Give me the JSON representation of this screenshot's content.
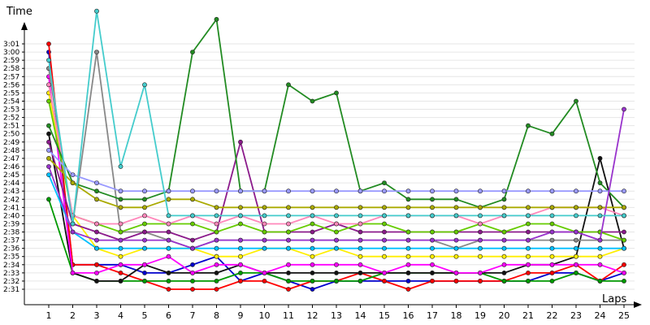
{
  "chart_data": {
    "type": "line",
    "xlabel": "Laps",
    "ylabel": "Time",
    "x": [
      1,
      2,
      3,
      4,
      5,
      6,
      7,
      8,
      9,
      10,
      11,
      12,
      13,
      14,
      15,
      16,
      17,
      18,
      19,
      20,
      21,
      22,
      23,
      24,
      25
    ],
    "xlim": [
      1,
      25
    ],
    "ylim_seconds": [
      151,
      181
    ],
    "y_tick_labels": [
      "2:31",
      "2:32",
      "2:33",
      "2:34",
      "2:35",
      "2:36",
      "2:37",
      "2:38",
      "2:39",
      "2:40",
      "2:41",
      "2:42",
      "2:43",
      "2:44",
      "2:45",
      "2:46",
      "2:47",
      "2:48",
      "2:49",
      "2:50",
      "2:51",
      "2:52",
      "2:53",
      "2:54",
      "2:55",
      "2:56",
      "2:57",
      "2:58",
      "2:59",
      "3:00",
      "3:01"
    ],
    "grid": true,
    "legend": "none",
    "series": [
      {
        "color": "#0000cc",
        "values": [
          "3:00",
          "2:34",
          "2:34",
          "2:34",
          "2:33",
          "2:33",
          "2:34",
          "2:35",
          "2:32",
          "2:33",
          "2:32",
          "2:31",
          "2:32",
          "2:32",
          "2:32",
          "2:32",
          "2:32",
          "2:32",
          "2:32",
          "2:32",
          "2:32",
          "2:33",
          "2:33",
          "2:32",
          "2:33"
        ]
      },
      {
        "color": "#ff0000",
        "values": [
          "3:01",
          "2:34",
          "2:34",
          "2:33",
          "2:32",
          "2:31",
          "2:31",
          "2:31",
          "2:32",
          "2:32",
          "2:31",
          "2:32",
          "2:32",
          "2:33",
          "2:32",
          "2:31",
          "2:32",
          "2:32",
          "2:32",
          "2:32",
          "2:33",
          "2:33",
          "2:34",
          "2:32",
          "2:34"
        ]
      },
      {
        "color": "#009900",
        "values": [
          "2:42",
          "2:33",
          "2:32",
          "2:32",
          "2:32",
          "2:32",
          "2:32",
          "2:32",
          "2:33",
          "2:33",
          "2:32",
          "2:32",
          "2:32",
          "2:32",
          "2:33",
          "2:33",
          "2:33",
          "2:33",
          "2:33",
          "2:32",
          "2:32",
          "2:32",
          "2:33",
          "2:32",
          "2:32"
        ]
      },
      {
        "color": "#111111",
        "values": [
          "2:50",
          "2:33",
          "2:32",
          "2:32",
          "2:34",
          "2:33",
          "2:33",
          "2:33",
          "2:34",
          "2:33",
          "2:33",
          "2:33",
          "2:33",
          "2:33",
          "2:33",
          "2:33",
          "2:33",
          "2:33",
          "2:33",
          "2:33",
          "2:34",
          "2:34",
          "2:35",
          "2:47",
          "2:36"
        ]
      },
      {
        "color": "#ff00ff",
        "values": [
          "2:57",
          "2:33",
          "2:33",
          "2:34",
          "2:34",
          "2:35",
          "2:33",
          "2:34",
          "2:34",
          "2:33",
          "2:34",
          "2:34",
          "2:34",
          "2:34",
          "2:33",
          "2:34",
          "2:34",
          "2:33",
          "2:33",
          "2:34",
          "2:34",
          "2:34",
          "2:34",
          "2:34",
          "2:33"
        ]
      },
      {
        "color": "#888888",
        "values": [
          "2:58",
          "2:39",
          "3:00",
          "2:38",
          "2:38",
          "2:37",
          "2:36",
          "2:37",
          "2:37",
          "2:37",
          "2:37",
          "2:37",
          "2:37",
          "2:37",
          "2:37",
          "2:37",
          "2:37",
          "2:36",
          "2:37",
          "2:37",
          "2:37",
          "2:37",
          "2:37",
          "2:37",
          "2:37"
        ]
      },
      {
        "color": "#ffee00",
        "values": [
          "2:55",
          "2:40",
          "2:36",
          "2:35",
          "2:36",
          "2:36",
          "2:36",
          "2:35",
          "2:35",
          "2:36",
          "2:36",
          "2:35",
          "2:36",
          "2:35",
          "2:35",
          "2:35",
          "2:35",
          "2:35",
          "2:35",
          "2:35",
          "2:35",
          "2:35",
          "2:35",
          "2:35",
          "2:36"
        ]
      },
      {
        "color": "#00bfff",
        "values": [
          "2:45",
          "2:38",
          "2:36",
          "2:36",
          "2:36",
          "2:36",
          "2:36",
          "2:36",
          "2:36",
          "2:36",
          "2:36",
          "2:36",
          "2:36",
          "2:36",
          "2:36",
          "2:36",
          "2:36",
          "2:36",
          "2:36",
          "2:36",
          "2:36",
          "2:36",
          "2:36",
          "2:36",
          "2:36"
        ]
      },
      {
        "color": "#8b1a8b",
        "values": [
          "2:49",
          "2:39",
          "2:38",
          "2:37",
          "2:38",
          "2:38",
          "2:37",
          "2:38",
          "2:49",
          "2:38",
          "2:38",
          "2:38",
          "2:39",
          "2:38",
          "2:38",
          "2:38",
          "2:38",
          "2:38",
          "2:38",
          "2:38",
          "2:38",
          "2:38",
          "2:38",
          "2:38",
          "2:38"
        ]
      },
      {
        "color": "#66cc00",
        "values": [
          "2:54",
          "2:40",
          "2:39",
          "2:38",
          "2:39",
          "2:39",
          "2:39",
          "2:38",
          "2:39",
          "2:38",
          "2:38",
          "2:39",
          "2:38",
          "2:39",
          "2:39",
          "2:38",
          "2:38",
          "2:38",
          "2:39",
          "2:38",
          "2:39",
          "2:39",
          "2:38",
          "2:38",
          "2:37"
        ]
      },
      {
        "color": "#ff88bb",
        "values": [
          "2:56",
          "2:40",
          "2:39",
          "2:39",
          "2:40",
          "2:39",
          "2:40",
          "2:39",
          "2:40",
          "2:39",
          "2:39",
          "2:40",
          "2:39",
          "2:39",
          "2:40",
          "2:40",
          "2:40",
          "2:40",
          "2:39",
          "2:40",
          "2:40",
          "2:41",
          "2:41",
          "2:41",
          "2:40"
        ]
      },
      {
        "color": "#228b22",
        "values": [
          "2:51",
          "2:44",
          "2:43",
          "2:42",
          "2:42",
          "2:43",
          "3:00",
          "3:04",
          "2:43",
          "2:43",
          "2:56",
          "2:54",
          "2:55",
          "2:43",
          "2:44",
          "2:42",
          "2:42",
          "2:42",
          "2:41",
          "2:42",
          "2:51",
          "2:50",
          "2:54",
          "2:44",
          "2:41"
        ]
      },
      {
        "color": "#aaaa00",
        "values": [
          "2:47",
          "2:44",
          "2:42",
          "2:41",
          "2:41",
          "2:42",
          "2:42",
          "2:41",
          "2:41",
          "2:41",
          "2:41",
          "2:41",
          "2:41",
          "2:41",
          "2:41",
          "2:41",
          "2:41",
          "2:41",
          "2:41",
          "2:41",
          "2:41",
          "2:41",
          "2:41",
          "2:41",
          "2:41"
        ]
      },
      {
        "color": "#9999ff",
        "values": [
          "2:48",
          "2:45",
          "2:44",
          "2:43",
          "2:43",
          "2:43",
          "2:43",
          "2:43",
          "2:43",
          "2:43",
          "2:43",
          "2:43",
          "2:43",
          "2:43",
          "2:43",
          "2:43",
          "2:43",
          "2:43",
          "2:43",
          "2:43",
          "2:43",
          "2:43",
          "2:43",
          "2:43",
          "2:43"
        ]
      },
      {
        "color": "#9933cc",
        "values": [
          "2:46",
          "2:38",
          "2:37",
          "2:37",
          "2:37",
          "2:37",
          "2:36",
          "2:37",
          "2:37",
          "2:37",
          "2:37",
          "2:37",
          "2:37",
          "2:37",
          "2:37",
          "2:37",
          "2:37",
          "2:37",
          "2:37",
          "2:37",
          "2:37",
          "2:38",
          "2:38",
          "2:37",
          "2:53"
        ]
      },
      {
        "color": "#44cccc",
        "values": [
          "2:59",
          "2:39",
          "3:05",
          "2:46",
          "2:56",
          "2:40",
          "2:40",
          "2:40",
          "2:40",
          "2:40",
          "2:40",
          "2:40",
          "2:40",
          "2:40",
          "2:40",
          "2:40",
          "2:40",
          "2:40",
          "2:40",
          "2:40",
          "2:40",
          "2:40",
          "2:40",
          "2:40",
          "2:40"
        ]
      }
    ]
  }
}
